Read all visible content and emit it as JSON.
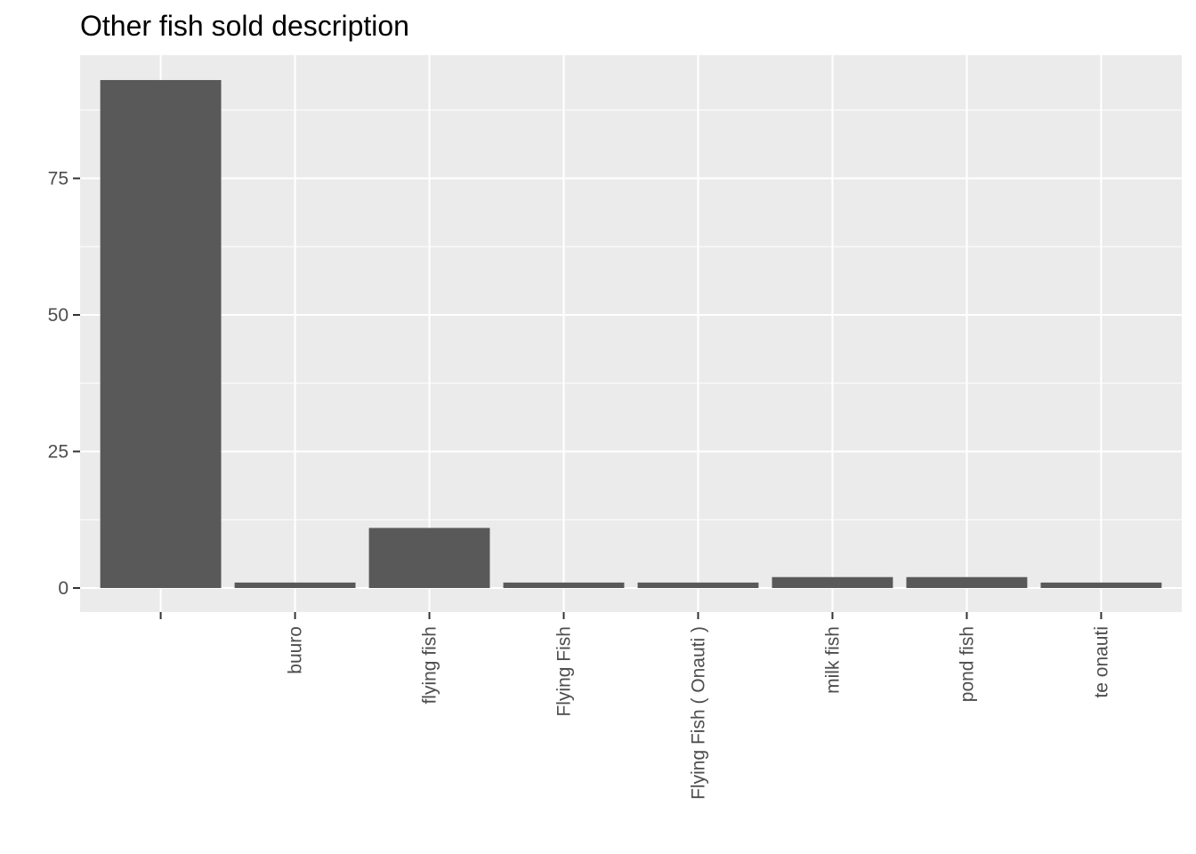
{
  "chart_data": {
    "type": "bar",
    "title": "Other fish sold description",
    "xlabel": "",
    "ylabel": "",
    "categories": [
      "",
      "buuro",
      "flying fish",
      "Flying Fish",
      "Flying Fish ( Onauti )",
      "milk fish",
      "pond fish",
      "te onauti"
    ],
    "values": [
      93,
      1,
      11,
      1,
      1,
      2,
      2,
      1
    ],
    "ylim": [
      0,
      97.5
    ],
    "yticks": [
      0,
      25,
      50,
      75
    ],
    "ytick_labels": [
      "0",
      "25",
      "50",
      "75"
    ],
    "grid": true,
    "legend": "none",
    "colors": {
      "panel": "#EBEBEB",
      "bar": "#595959",
      "grid": "#FFFFFF",
      "tick_text": "#4D4D4D",
      "tick_mark": "#333333",
      "title": "#000000"
    }
  }
}
